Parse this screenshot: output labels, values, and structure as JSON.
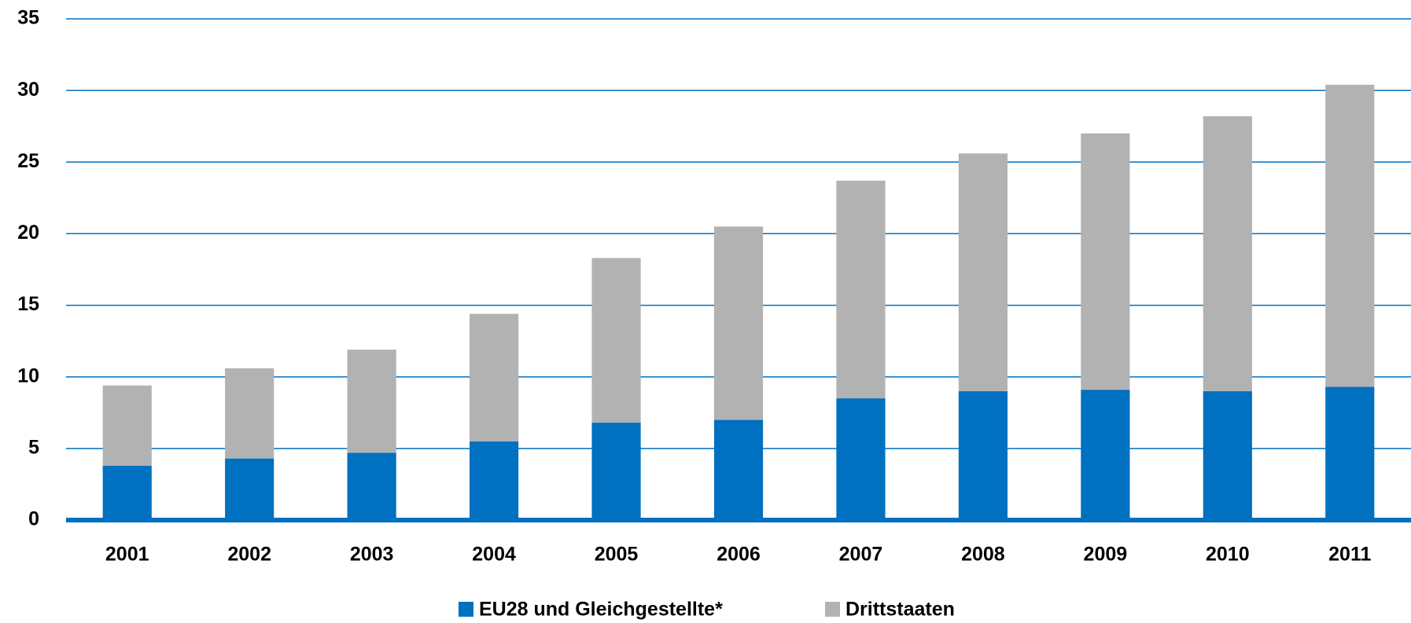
{
  "chart_data": {
    "type": "stacked_bar",
    "categories": [
      "2001",
      "2002",
      "2003",
      "2004",
      "2005",
      "2006",
      "2007",
      "2008",
      "2009",
      "2010",
      "2011"
    ],
    "series": [
      {
        "name": "EU28 und Gleichgestellte*",
        "color": "#0070c0",
        "values": [
          3.8,
          4.3,
          4.7,
          5.5,
          6.8,
          7.0,
          8.5,
          9.0,
          9.1,
          9.0,
          9.3
        ]
      },
      {
        "name": "Drittstaaten",
        "color": "#b2b2b2",
        "values": [
          5.6,
          6.3,
          7.2,
          8.9,
          11.5,
          13.5,
          15.2,
          16.6,
          17.9,
          19.2,
          21.1
        ]
      }
    ],
    "ylim": [
      0,
      35
    ],
    "yticks": [
      0,
      5,
      10,
      15,
      20,
      25,
      30,
      35
    ],
    "grid": true,
    "legend": "bottom"
  }
}
